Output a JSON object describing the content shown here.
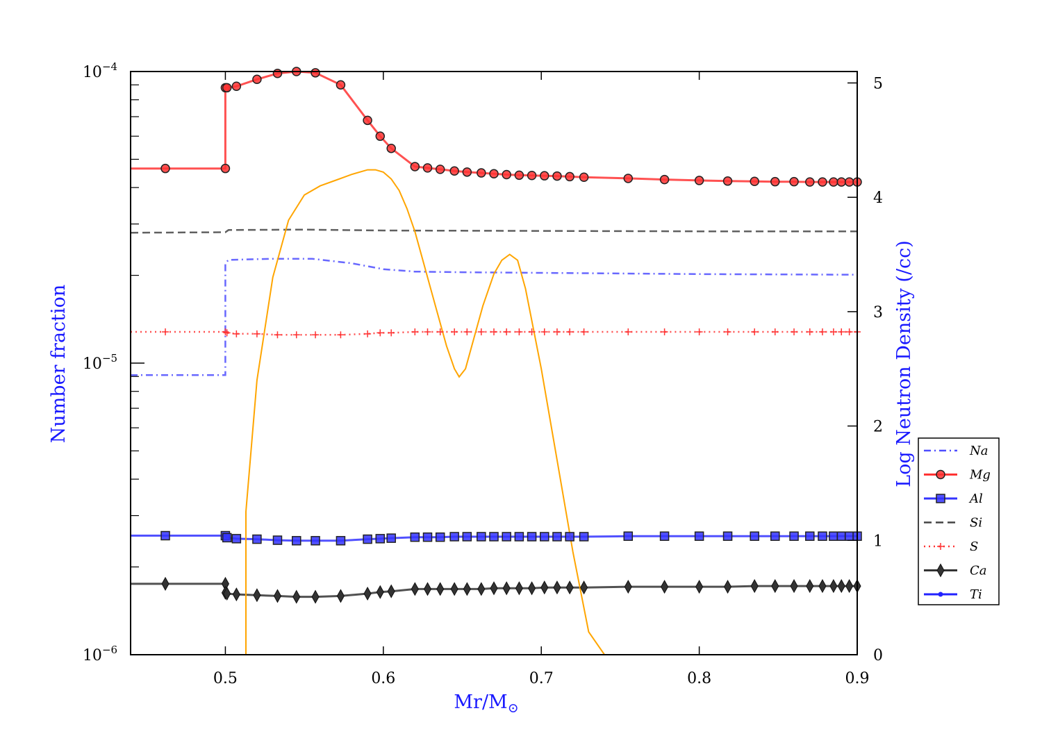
{
  "chart_data": {
    "type": "line",
    "xlabel": "Mr/M",
    "xlabel_sub": "⊙",
    "ylabel_left": "Number fraction",
    "ylabel_right": "Log Neutron Density (/cc)",
    "xlim": [
      0.44,
      0.9
    ],
    "ylim_left": [
      1e-06,
      0.0001
    ],
    "ylim_right": [
      0,
      5.1
    ],
    "y_left_scale": "log",
    "x_ticks": [
      "0.5",
      "0.6",
      "0.7",
      "0.8",
      "0.9"
    ],
    "y_left_ticks": [
      {
        "base": "10",
        "exp": "−6"
      },
      {
        "base": "10",
        "exp": "−5"
      },
      {
        "base": "10",
        "exp": "−4"
      }
    ],
    "y_right_ticks": [
      "0",
      "1",
      "2",
      "3",
      "4",
      "5"
    ],
    "legend_position": "lower-right",
    "series": [
      {
        "name": "Na",
        "color": "#4d4dff",
        "style": "dashdot",
        "marker": "none",
        "x": [
          0.44,
          0.5,
          0.5,
          0.502,
          0.53,
          0.555,
          0.58,
          0.6,
          0.62,
          0.65,
          0.7,
          0.8,
          0.9
        ],
        "y": [
          9.1e-06,
          9.1e-06,
          2.2e-05,
          2.26e-05,
          2.28e-05,
          2.28e-05,
          2.2e-05,
          2.1e-05,
          2.06e-05,
          2.05e-05,
          2.04e-05,
          2.02e-05,
          2.01e-05
        ]
      },
      {
        "name": "Mg",
        "color": "#ff3333",
        "style": "solid",
        "marker": "circle",
        "x": [
          0.44,
          0.462,
          0.5,
          0.5,
          0.501,
          0.507,
          0.52,
          0.533,
          0.545,
          0.557,
          0.573,
          0.59,
          0.598,
          0.605,
          0.62,
          0.628,
          0.636,
          0.645,
          0.653,
          0.662,
          0.67,
          0.678,
          0.686,
          0.694,
          0.702,
          0.71,
          0.718,
          0.727,
          0.755,
          0.778,
          0.8,
          0.818,
          0.835,
          0.848,
          0.86,
          0.87,
          0.878,
          0.885,
          0.89,
          0.895,
          0.9
        ],
        "y": [
          4.65e-05,
          4.65e-05,
          4.65e-05,
          8.8e-05,
          8.8e-05,
          8.9e-05,
          9.4e-05,
          9.85e-05,
          0.0001,
          9.9e-05,
          9e-05,
          6.8e-05,
          6e-05,
          5.45e-05,
          4.72e-05,
          4.67e-05,
          4.62e-05,
          4.56e-05,
          4.52e-05,
          4.49e-05,
          4.46e-05,
          4.43e-05,
          4.41e-05,
          4.4e-05,
          4.39e-05,
          4.38e-05,
          4.36e-05,
          4.34e-05,
          4.3e-05,
          4.26e-05,
          4.23e-05,
          4.21e-05,
          4.2e-05,
          4.19e-05,
          4.19e-05,
          4.18e-05,
          4.18e-05,
          4.18e-05,
          4.18e-05,
          4.18e-05,
          4.18e-05
        ]
      },
      {
        "name": "Al",
        "color": "#3333ff",
        "style": "solid",
        "marker": "square",
        "x": [
          0.44,
          0.462,
          0.5,
          0.501,
          0.507,
          0.52,
          0.533,
          0.545,
          0.557,
          0.573,
          0.59,
          0.598,
          0.605,
          0.62,
          0.628,
          0.636,
          0.645,
          0.653,
          0.662,
          0.67,
          0.678,
          0.686,
          0.694,
          0.702,
          0.71,
          0.718,
          0.727,
          0.755,
          0.778,
          0.8,
          0.818,
          0.835,
          0.848,
          0.86,
          0.87,
          0.878,
          0.885,
          0.89,
          0.895,
          0.9
        ],
        "y": [
          2.56e-06,
          2.56e-06,
          2.56e-06,
          2.52e-06,
          2.5e-06,
          2.49e-06,
          2.47e-06,
          2.46e-06,
          2.46e-06,
          2.46e-06,
          2.49e-06,
          2.5e-06,
          2.51e-06,
          2.53e-06,
          2.53e-06,
          2.53e-06,
          2.54e-06,
          2.54e-06,
          2.54e-06,
          2.54e-06,
          2.54e-06,
          2.54e-06,
          2.54e-06,
          2.54e-06,
          2.54e-06,
          2.54e-06,
          2.54e-06,
          2.55e-06,
          2.55e-06,
          2.55e-06,
          2.55e-06,
          2.55e-06,
          2.55e-06,
          2.55e-06,
          2.55e-06,
          2.55e-06,
          2.55e-06,
          2.55e-06,
          2.55e-06,
          2.55e-06
        ]
      },
      {
        "name": "Si",
        "color": "#444444",
        "style": "dashed",
        "marker": "none",
        "x": [
          0.44,
          0.5,
          0.502,
          0.55,
          0.6,
          0.7,
          0.8,
          0.9
        ],
        "y": [
          2.8e-05,
          2.81e-05,
          2.86e-05,
          2.87e-05,
          2.85e-05,
          2.84e-05,
          2.83e-05,
          2.83e-05
        ]
      },
      {
        "name": "S",
        "color": "#ff3333",
        "style": "dotted",
        "marker": "plus",
        "x": [
          0.44,
          0.462,
          0.5,
          0.501,
          0.507,
          0.52,
          0.533,
          0.545,
          0.557,
          0.573,
          0.59,
          0.598,
          0.605,
          0.62,
          0.628,
          0.636,
          0.645,
          0.653,
          0.662,
          0.67,
          0.678,
          0.686,
          0.694,
          0.702,
          0.71,
          0.718,
          0.727,
          0.755,
          0.778,
          0.8,
          0.818,
          0.835,
          0.848,
          0.86,
          0.87,
          0.878,
          0.885,
          0.89,
          0.895,
          0.9
        ],
        "y": [
          1.28e-05,
          1.28e-05,
          1.28e-05,
          1.27e-05,
          1.26e-05,
          1.26e-05,
          1.25e-05,
          1.25e-05,
          1.25e-05,
          1.25e-05,
          1.26e-05,
          1.27e-05,
          1.27e-05,
          1.28e-05,
          1.28e-05,
          1.28e-05,
          1.28e-05,
          1.28e-05,
          1.28e-05,
          1.28e-05,
          1.28e-05,
          1.28e-05,
          1.28e-05,
          1.28e-05,
          1.28e-05,
          1.28e-05,
          1.28e-05,
          1.28e-05,
          1.28e-05,
          1.28e-05,
          1.28e-05,
          1.28e-05,
          1.28e-05,
          1.28e-05,
          1.28e-05,
          1.28e-05,
          1.28e-05,
          1.28e-05,
          1.28e-05,
          1.28e-05
        ]
      },
      {
        "name": "Ca",
        "color": "#333333",
        "style": "solid",
        "marker": "diamond",
        "x": [
          0.44,
          0.462,
          0.5,
          0.5,
          0.501,
          0.507,
          0.52,
          0.533,
          0.545,
          0.557,
          0.573,
          0.59,
          0.598,
          0.605,
          0.62,
          0.628,
          0.636,
          0.645,
          0.653,
          0.662,
          0.67,
          0.678,
          0.686,
          0.694,
          0.702,
          0.71,
          0.718,
          0.727,
          0.755,
          0.778,
          0.8,
          0.818,
          0.835,
          0.848,
          0.86,
          0.87,
          0.878,
          0.885,
          0.89,
          0.895,
          0.9
        ],
        "y": [
          1.75e-06,
          1.75e-06,
          1.75e-06,
          1.63e-06,
          1.62e-06,
          1.61e-06,
          1.6e-06,
          1.59e-06,
          1.58e-06,
          1.58e-06,
          1.59e-06,
          1.62e-06,
          1.64e-06,
          1.65e-06,
          1.68e-06,
          1.68e-06,
          1.68e-06,
          1.68e-06,
          1.68e-06,
          1.68e-06,
          1.69e-06,
          1.69e-06,
          1.69e-06,
          1.69e-06,
          1.7e-06,
          1.7e-06,
          1.7e-06,
          1.7e-06,
          1.71e-06,
          1.71e-06,
          1.71e-06,
          1.71e-06,
          1.72e-06,
          1.72e-06,
          1.72e-06,
          1.72e-06,
          1.72e-06,
          1.72e-06,
          1.72e-06,
          1.72e-06,
          1.72e-06
        ]
      },
      {
        "name": "Ti",
        "color": "#2222ff",
        "style": "solid",
        "marker": "dot",
        "x": [],
        "y": []
      }
    ],
    "neutron_density": {
      "color": "#ffa500",
      "axis": "right",
      "x": [
        0.513,
        0.513,
        0.52,
        0.53,
        0.54,
        0.55,
        0.56,
        0.57,
        0.58,
        0.59,
        0.595,
        0.6,
        0.605,
        0.61,
        0.615,
        0.62,
        0.625,
        0.63,
        0.635,
        0.64,
        0.645,
        0.648,
        0.652,
        0.657,
        0.663,
        0.67,
        0.675,
        0.68,
        0.685,
        0.69,
        0.7,
        0.71,
        0.72,
        0.73,
        0.74
      ],
      "y": [
        0,
        1.25,
        2.4,
        3.3,
        3.8,
        4.02,
        4.1,
        4.15,
        4.2,
        4.24,
        4.24,
        4.22,
        4.16,
        4.06,
        3.9,
        3.7,
        3.45,
        3.2,
        2.95,
        2.7,
        2.5,
        2.43,
        2.5,
        2.75,
        3.05,
        3.33,
        3.45,
        3.5,
        3.45,
        3.2,
        2.5,
        1.7,
        0.9,
        0.2,
        0
      ]
    }
  }
}
